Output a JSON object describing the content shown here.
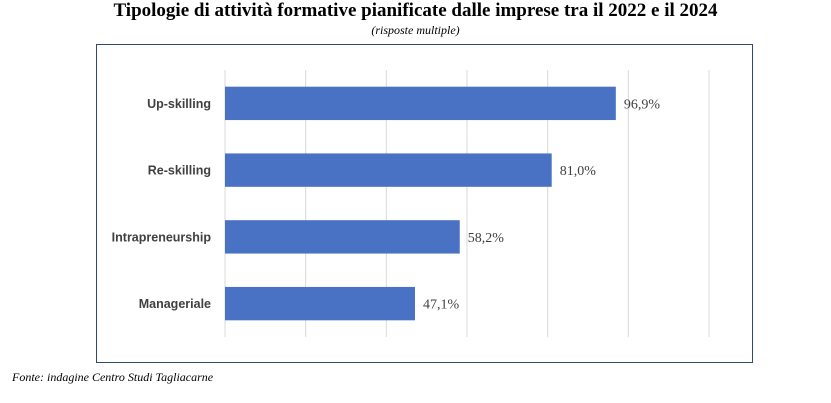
{
  "title": "Tipologie di attività formative pianificate dalle imprese tra il 2022 e il 2024",
  "subtitle": "(risposte multiple)",
  "source": "Fonte: indagine Centro Studi Tagliacarne",
  "chart_data": {
    "type": "bar",
    "orientation": "horizontal",
    "categories": [
      "Up-skilling",
      "Re-skilling",
      "Intrapreneurship",
      "Manageriale"
    ],
    "values": [
      96.9,
      81.0,
      58.2,
      47.1
    ],
    "value_labels": [
      "96,9%",
      "81,0%",
      "58,2%",
      "47,1%"
    ],
    "xlim": [
      0,
      120
    ],
    "grid": true,
    "bar_color": "#4a72c4"
  }
}
